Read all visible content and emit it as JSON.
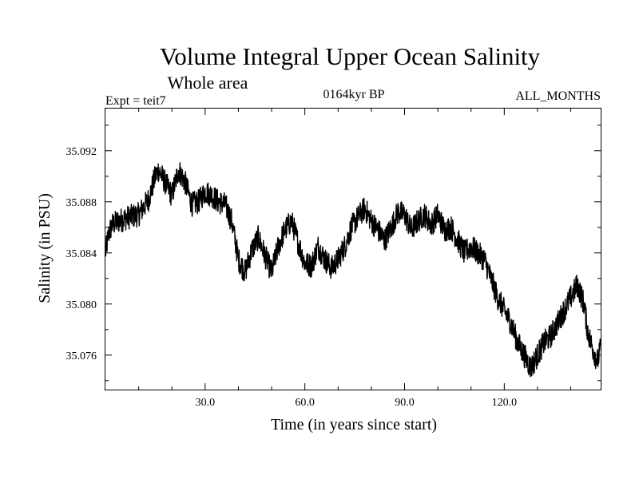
{
  "chart_data": {
    "type": "line",
    "title": "Volume Integral Upper Ocean Salinity",
    "subtitle": "Whole area",
    "experiment_label": "Expt = teit7",
    "period_label": "0164kyr BP",
    "months_label": "ALL_MONTHS",
    "xlabel": "Time (in years since start)",
    "ylabel": "Salinity (in PSU)",
    "xlim": [
      0,
      149
    ],
    "ylim": [
      35.0733,
      35.0953
    ],
    "x_ticks": [
      30,
      60,
      90,
      120
    ],
    "x_tick_labels": [
      "30.0",
      "60.0",
      "90.0",
      "120.0"
    ],
    "y_ticks": [
      35.076,
      35.08,
      35.084,
      35.088,
      35.092
    ],
    "y_tick_labels": [
      "35.076",
      "35.080",
      "35.084",
      "35.088",
      "35.092"
    ],
    "grid": false,
    "series": [
      {
        "name": "Salinity",
        "noise_amplitude": 0.0012,
        "x": [
          0,
          1,
          2,
          4,
          7,
          10,
          13,
          15,
          16,
          18,
          20,
          21,
          22,
          24,
          26,
          28,
          30,
          32,
          34,
          36,
          38,
          39,
          40,
          42,
          44,
          46,
          48,
          50,
          52,
          54,
          56,
          58,
          60,
          62,
          64,
          66,
          68,
          70,
          72,
          74,
          76,
          78,
          80,
          82,
          84,
          86,
          88,
          90,
          92,
          94,
          96,
          98,
          100,
          102,
          104,
          106,
          108,
          110,
          112,
          114,
          116,
          118,
          120,
          122,
          124,
          126,
          128,
          130,
          132,
          134,
          136,
          138,
          140,
          142,
          144,
          145,
          146,
          148,
          149
        ],
        "values": [
          35.084,
          35.0855,
          35.0862,
          35.0865,
          35.0868,
          35.087,
          35.0882,
          35.09,
          35.0905,
          35.0895,
          35.0885,
          35.0895,
          35.0905,
          35.0895,
          35.0878,
          35.088,
          35.0888,
          35.0885,
          35.088,
          35.0878,
          35.0865,
          35.085,
          35.0835,
          35.0825,
          35.0842,
          35.0852,
          35.0838,
          35.0825,
          35.0845,
          35.0858,
          35.0865,
          35.0848,
          35.0832,
          35.083,
          35.0845,
          35.0835,
          35.0828,
          35.0835,
          35.0845,
          35.086,
          35.0868,
          35.0875,
          35.0865,
          35.0858,
          35.085,
          35.086,
          35.0872,
          35.087,
          35.0858,
          35.0865,
          35.087,
          35.0862,
          35.087,
          35.0858,
          35.086,
          35.085,
          35.084,
          35.0845,
          35.084,
          35.0835,
          35.082,
          35.0805,
          35.0795,
          35.0785,
          35.077,
          35.076,
          35.075,
          35.076,
          35.077,
          35.0775,
          35.0785,
          35.0795,
          35.0805,
          35.0815,
          35.08,
          35.078,
          35.077,
          35.0755,
          35.0765
        ]
      }
    ]
  }
}
